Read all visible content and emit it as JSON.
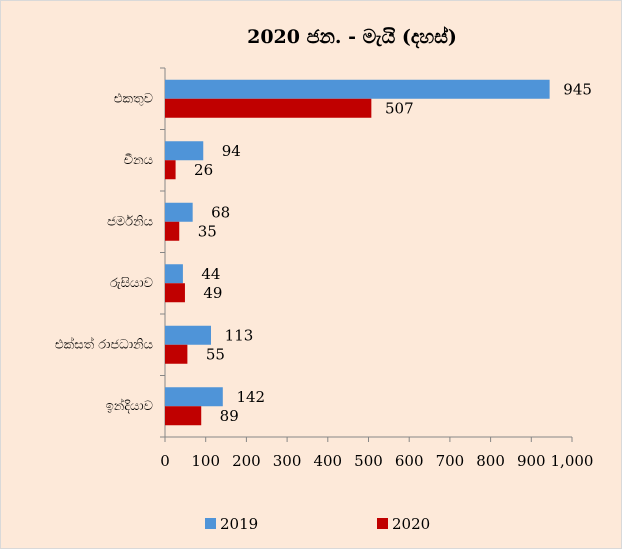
{
  "chart_data": {
    "type": "hbar",
    "title": "2020 ජන. - මැයි (දහස්)",
    "categories": [
      "එකතුව",
      "චීනය",
      "ජර්මනිය",
      "රුසියාව",
      "එක්සත් රාජධානිය",
      "ඉන්දියාව"
    ],
    "series": [
      {
        "name": "2019",
        "color": "#4f94d8",
        "values": [
          945,
          94,
          68,
          44,
          113,
          142
        ]
      },
      {
        "name": "2020",
        "color": "#c00000",
        "values": [
          507,
          26,
          35,
          49,
          55,
          89
        ]
      }
    ],
    "xlim": [
      0,
      1000
    ],
    "xticks": [
      0,
      100,
      200,
      300,
      400,
      500,
      600,
      700,
      800,
      900,
      {
        "value": 1000,
        "label": "1,000"
      }
    ],
    "legend": "bottom"
  }
}
